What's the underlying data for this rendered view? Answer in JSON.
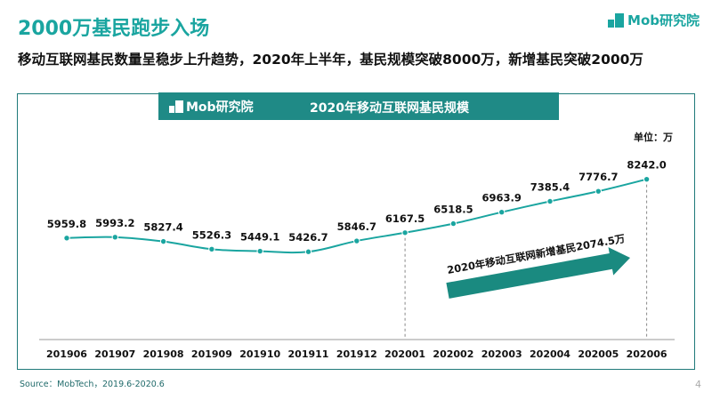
{
  "header": {
    "title": "2000万基民跑步入场",
    "subtitle": "移动互联网基民数量呈稳步上升趋势，2020年上半年，基民规模突破8000万，新增基民突破2000万",
    "logo_text": "Mob研究院"
  },
  "panel": {
    "banner_logo": "Mob研究院",
    "banner_title": "2020年移动互联网基民规模",
    "unit": "单位：万"
  },
  "chart_data": {
    "type": "line",
    "title": "2020年移动互联网基民规模",
    "unit": "单位：万",
    "categories": [
      "201906",
      "201907",
      "201908",
      "201909",
      "201910",
      "201911",
      "201912",
      "202001",
      "202002",
      "202003",
      "202004",
      "202005",
      "202006"
    ],
    "series": [
      {
        "values": [
          5959.8,
          5993.2,
          5827.4,
          5526.3,
          5449.1,
          5426.7,
          5846.7,
          6167.5,
          6518.5,
          6963.9,
          7385.4,
          7776.7,
          8242.0
        ]
      }
    ],
    "value_labels": [
      "5959.8",
      "5993.2",
      "5827.4",
      "5526.3",
      "5449.1",
      "5426.7",
      "5846.7",
      "6167.5",
      "6518.5",
      "6963.9",
      "7385.4",
      "7776.7",
      "8242.0"
    ],
    "ylim": [
      4000,
      9000
    ],
    "grid": false,
    "legend": "none",
    "annotation": "2020年移动互联网新增基民2074.5万",
    "colors": {
      "line": "#1aa5a0",
      "marker": "#1aa5a0",
      "arrow": "#1a8a80",
      "dashed": "#888888"
    }
  },
  "footer": {
    "source": "Source：MobTech，2019.6-2020.6",
    "page": "4"
  }
}
